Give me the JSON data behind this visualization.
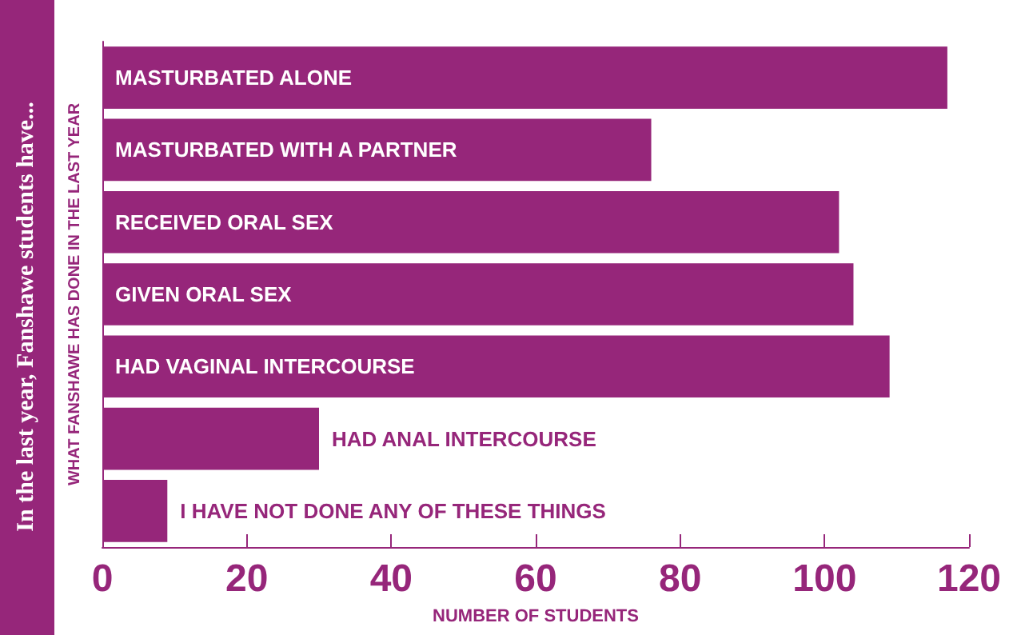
{
  "chart_data": {
    "type": "bar",
    "orientation": "horizontal",
    "title": "In the last year, Fanshawe students have...",
    "ylabel": "WHAT FANSHAWE HAS DONE IN THE LAST YEAR",
    "xlabel": "NUMBER OF STUDENTS",
    "categories": [
      "MASTURBATED ALONE",
      "MASTURBATED WITH A PARTNER",
      "RECEIVED ORAL SEX",
      "GIVEN ORAL SEX",
      "HAD VAGINAL INTERCOURSE",
      "HAD ANAL INTERCOURSE",
      "I HAVE NOT DONE ANY OF THESE THINGS"
    ],
    "values": [
      117,
      76,
      102,
      104,
      109,
      30,
      9
    ],
    "color": "#96267a",
    "xlim": [
      0,
      120
    ],
    "xticks": [
      0,
      20,
      40,
      60,
      80,
      100,
      120
    ],
    "grid": false,
    "tick_labels": "x"
  }
}
